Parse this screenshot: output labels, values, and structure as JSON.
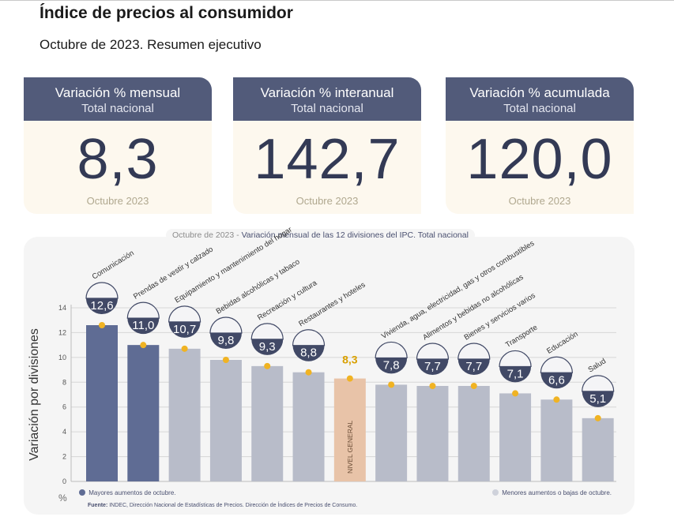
{
  "header": {
    "title": "Índice de precios al consumidor",
    "subtitle": "Octubre de 2023. Resumen ejecutivo"
  },
  "kpis": [
    {
      "title": "Variación % mensual",
      "scope": "Total nacional",
      "value": "8,3",
      "period": "Octubre 2023"
    },
    {
      "title": "Variación % interanual",
      "scope": "Total nacional",
      "value": "142,7",
      "period": "Octubre 2023"
    },
    {
      "title": "Variación % acumulada",
      "scope": "Total nacional",
      "value": "120,0",
      "period": "Octubre 2023"
    }
  ],
  "panel": {
    "title_period": "Octubre de 2023 -",
    "title_text": "Variación mensual de las 12 divisiones del IPC. Total nacional"
  },
  "legend": {
    "high": "Mayores aumentos de octubre.",
    "low": "Menores aumentos o bajas de octubre."
  },
  "unit_label": "%",
  "source": {
    "label": "Fuente:",
    "text": "INDEC, Dirección Nacional de Estadísticas de Precios. Dirección de Índices de Precios de Consumo."
  },
  "colors": {
    "header_bg": "#525b7a",
    "kpi_body_bg": "#fdf8ee",
    "bar_high": "#5f6c94",
    "bar_low": "#b8bcc9",
    "bar_general": "#e8c3a8",
    "bar_general_text": "#d9a000",
    "label_bg": "#414966",
    "marker": "#f0b323",
    "grid": "#d6d6d6"
  },
  "chart_data": {
    "type": "bar",
    "ylabel": "Variación por divisiones",
    "ylim": [
      0,
      14
    ],
    "yticks": [
      0,
      2,
      4,
      6,
      8,
      10,
      12,
      14
    ],
    "categories": [
      "Comunicación",
      "Prendas de vestir y calzado",
      "Equipamiento y mantenimiento del hogar",
      "Bebidas alcohólicas y tabaco",
      "Recreación y cultura",
      "Restaurantes y hoteles",
      "NIVEL GENERAL",
      "Vivienda, agua, electricidad, gas y otros combustibles",
      "Alimentos y bebidas no alcohólicas",
      "Bienes y servicios varios",
      "Transporte",
      "Educación",
      "Salud"
    ],
    "values": [
      12.6,
      11.0,
      10.7,
      9.8,
      9.3,
      8.8,
      8.3,
      7.8,
      7.7,
      7.7,
      7.1,
      6.6,
      5.1
    ],
    "value_labels": [
      "12,6",
      "11,0",
      "10,7",
      "9,8",
      "9,3",
      "8,8",
      "8,3",
      "7,8",
      "7,7",
      "7,7",
      "7,1",
      "6,6",
      "5,1"
    ],
    "groups": [
      "high",
      "high",
      "low",
      "low",
      "low",
      "low",
      "general",
      "low",
      "low",
      "low",
      "low",
      "low",
      "low"
    ],
    "grid": true,
    "legend": "bottom"
  }
}
